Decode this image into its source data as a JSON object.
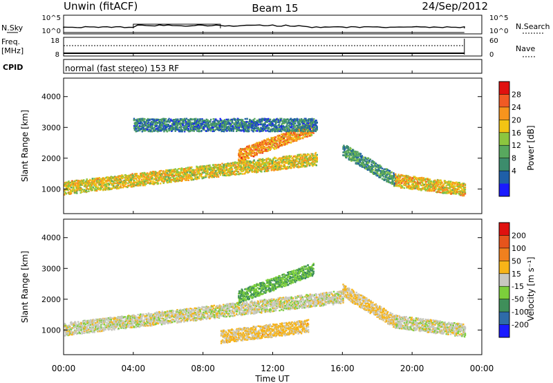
{
  "header": {
    "station": "Unwin (fitACF)",
    "beam": "Beam 15",
    "date": "24/Sep/2012"
  },
  "status_panels": {
    "nsky": {
      "label": "N.Sky",
      "ticks": [
        "10^5",
        "10^0"
      ]
    },
    "nsearch": {
      "label": "N.Search",
      "ticks": [
        "10^5",
        "10^0"
      ]
    },
    "freq": {
      "label_line1": "Freq.",
      "label_line2": "[MHz]",
      "ticks": [
        "18",
        "8"
      ]
    },
    "nave": {
      "label": "Nave",
      "ticks": [
        "60",
        "0"
      ]
    },
    "cpid": {
      "label": "CPID",
      "value": "normal (fast stereo) 153 RF"
    }
  },
  "chart_data": [
    {
      "type": "heatmap",
      "parameter": "power",
      "ylabel": "Slant Range [km]",
      "yticks": [
        "4000",
        "3000",
        "2000",
        "1000"
      ],
      "ylim": [
        200,
        4600
      ],
      "colorbar": {
        "label": "Power [dB]",
        "ticks": [
          "28",
          "24",
          "20",
          "16",
          "12",
          "8",
          "4"
        ],
        "range": [
          0,
          32
        ],
        "colors": [
          "#1a1aff",
          "#1f5fa8",
          "#3c8c6c",
          "#58a85e",
          "#8cc63f",
          "#f2c414",
          "#f7941d",
          "#f15a24",
          "#e0110f"
        ]
      },
      "features": [
        {
          "start_h": 0.0,
          "end_h": 14.5,
          "range_km_start": 1050,
          "range_km_end": 2000,
          "power_db": 19
        },
        {
          "start_h": 10.0,
          "end_h": 14.3,
          "range_km_start": 2100,
          "range_km_end": 3000,
          "power_db": 23
        },
        {
          "start_h": 16.0,
          "end_h": 19.0,
          "range_km_start": 2300,
          "range_km_end": 1300,
          "power_db": 10
        },
        {
          "start_h": 19.0,
          "end_h": 23.0,
          "range_km_start": 1300,
          "range_km_end": 1000,
          "power_db": 20
        },
        {
          "start_h": 4.0,
          "end_h": 14.5,
          "range_km_start": 3100,
          "range_km_end": 3100,
          "power_db": 8
        }
      ]
    },
    {
      "type": "heatmap",
      "parameter": "velocity",
      "ylabel": "Slant Range [km]",
      "yticks": [
        "4000",
        "3000",
        "2000",
        "1000"
      ],
      "ylim": [
        200,
        4600
      ],
      "xlabel": "Time UT",
      "xticks": [
        "00:00",
        "04:00",
        "08:00",
        "12:00",
        "16:00",
        "20:00",
        "00:00"
      ],
      "xlim": [
        0,
        24
      ],
      "colorbar": {
        "label": "Velocity [m s⁻¹]",
        "ticks": [
          "200",
          "100",
          "50",
          "15",
          "-15",
          "-50",
          "-100",
          "-200"
        ],
        "range": [
          -250,
          250
        ],
        "colors": [
          "#1a1aff",
          "#2e6ba8",
          "#3f8f5a",
          "#7ccf3b",
          "#c8c8c0",
          "#f7b418",
          "#f0801e",
          "#e6541c",
          "#e0110f"
        ]
      },
      "features": [
        {
          "start_h": 0.0,
          "end_h": 16.0,
          "range_km_start": 1050,
          "range_km_end": 2100,
          "velocity": 0
        },
        {
          "start_h": 10.0,
          "end_h": 14.3,
          "range_km_start": 2100,
          "range_km_end": 3000,
          "velocity": -80
        },
        {
          "start_h": 16.0,
          "end_h": 19.0,
          "range_km_start": 2300,
          "range_km_end": 1300,
          "velocity": 30
        },
        {
          "start_h": 19.0,
          "end_h": 23.0,
          "range_km_start": 1300,
          "range_km_end": 1000,
          "velocity": 0
        },
        {
          "start_h": 9.0,
          "end_h": 14.0,
          "range_km_start": 800,
          "range_km_end": 1150,
          "velocity": 40
        }
      ]
    }
  ]
}
